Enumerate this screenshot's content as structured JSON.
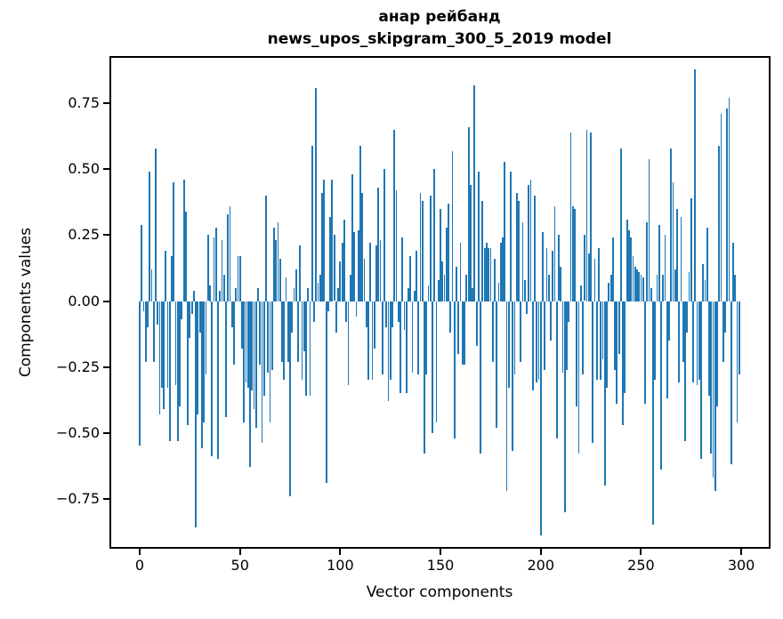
{
  "chart_data": {
    "type": "bar",
    "title_lines": [
      "анар рейбанд",
      "news_upos_skipgram_300_5_2019 model"
    ],
    "xlabel": "Vector components",
    "ylabel": "Components values",
    "x_tick_labels": [
      "0",
      "50",
      "100",
      "150",
      "200",
      "250",
      "300"
    ],
    "x_tick_values": [
      0,
      50,
      100,
      150,
      200,
      250,
      300
    ],
    "y_tick_labels": [
      "0.75",
      "0.50",
      "0.25",
      "0.00",
      "−0.25",
      "−0.50",
      "−0.75"
    ],
    "y_tick_values": [
      0.75,
      0.5,
      0.25,
      0,
      -0.25,
      -0.5,
      -0.75
    ],
    "xlim": [
      -15.1,
      314.6
    ],
    "ylim": [
      -0.94,
      0.93
    ],
    "grid": false,
    "bar_color": "#1f77b4",
    "x_start": 0,
    "values": [
      -0.55,
      0.29,
      -0.04,
      -0.23,
      -0.1,
      0.49,
      0.12,
      -0.23,
      0.58,
      -0.09,
      -0.43,
      -0.33,
      -0.41,
      0.19,
      -0.33,
      -0.53,
      0.17,
      0.45,
      -0.32,
      -0.53,
      -0.4,
      -0.07,
      0.46,
      0.34,
      -0.47,
      -0.14,
      -0.05,
      0.04,
      -0.86,
      -0.43,
      -0.12,
      -0.56,
      -0.46,
      -0.28,
      0.25,
      0.06,
      -0.59,
      0.24,
      0.28,
      -0.6,
      0.04,
      0.23,
      0.1,
      -0.44,
      0.33,
      0.36,
      -0.1,
      -0.24,
      0.05,
      0.17,
      0.17,
      -0.18,
      -0.46,
      -0.31,
      -0.33,
      -0.63,
      -0.34,
      -0.41,
      -0.48,
      0.05,
      -0.24,
      -0.54,
      -0.36,
      0.4,
      -0.27,
      -0.46,
      -0.26,
      0.28,
      0.23,
      0.3,
      0.16,
      -0.23,
      -0.3,
      0.09,
      -0.23,
      -0.74,
      -0.12,
      0.05,
      0.12,
      -0.23,
      0.21,
      -0.3,
      -0.19,
      -0.36,
      0.05,
      -0.36,
      0.59,
      -0.08,
      0.81,
      0.07,
      0.1,
      0.41,
      0.46,
      -0.69,
      -0.04,
      0.32,
      0.46,
      0.25,
      -0.12,
      0.05,
      0.15,
      0.22,
      0.31,
      -0.08,
      -0.32,
      0.1,
      0.48,
      0.26,
      -0.06,
      0.27,
      0.59,
      0.41,
      0.16,
      -0.1,
      -0.3,
      0.22,
      -0.3,
      -0.18,
      0.21,
      0.43,
      0.23,
      -0.28,
      0.5,
      -0.1,
      -0.38,
      -0.3,
      -0.1,
      0.65,
      0.42,
      -0.08,
      -0.35,
      0.24,
      -0.11,
      -0.35,
      0.05,
      0.17,
      -0.27,
      0.04,
      0.19,
      -0.28,
      0.41,
      0.38,
      -0.58,
      -0.28,
      0.06,
      0.4,
      -0.5,
      0.5,
      -0.46,
      0.08,
      0.35,
      0.15,
      0.1,
      0.28,
      0.37,
      -0.12,
      0.57,
      -0.52,
      0.13,
      -0.2,
      0.22,
      -0.24,
      -0.24,
      0.1,
      0.66,
      0.44,
      0.05,
      0.82,
      -0.17,
      0.49,
      -0.58,
      0.38,
      0.2,
      0.22,
      0.2,
      0.2,
      -0.23,
      0.16,
      -0.48,
      0.07,
      0.22,
      0.24,
      0.53,
      -0.72,
      -0.33,
      0.49,
      -0.57,
      -0.28,
      0.41,
      0.38,
      -0.23,
      0.3,
      0.08,
      -0.05,
      0.44,
      0.46,
      -0.34,
      0.4,
      -0.31,
      -0.3,
      -0.89,
      0.26,
      -0.26,
      0.2,
      0.1,
      -0.15,
      0.19,
      0.36,
      -0.52,
      0.25,
      0.13,
      -0.27,
      -0.8,
      -0.26,
      -0.08,
      0.64,
      0.36,
      0.35,
      -0.4,
      -0.58,
      0.06,
      -0.28,
      0.25,
      0.65,
      0.18,
      0.64,
      -0.54,
      0.16,
      -0.3,
      0.2,
      -0.3,
      -0.22,
      -0.7,
      -0.33,
      0.07,
      0.1,
      0.24,
      -0.26,
      -0.39,
      -0.2,
      0.58,
      -0.47,
      -0.35,
      0.31,
      0.27,
      0.24,
      0.17,
      0.13,
      0.12,
      0.11,
      0.1,
      0.09,
      -0.39,
      0.3,
      0.54,
      0.05,
      -0.85,
      -0.3,
      0.1,
      0.29,
      -0.64,
      0.1,
      0.25,
      -0.37,
      -0.15,
      0.58,
      0.45,
      0.12,
      0.35,
      -0.31,
      0.32,
      -0.23,
      -0.53,
      -0.12,
      0.11,
      0.39,
      -0.31,
      0.88,
      -0.32,
      -0.3,
      -0.6,
      0.14,
      0.08,
      0.28,
      -0.36,
      -0.58,
      -0.67,
      -0.72,
      -0.4,
      0.59,
      0.71,
      -0.23,
      -0.12,
      0.73,
      0.77,
      -0.62,
      0.22,
      0.1,
      -0.46,
      -0.28
    ]
  }
}
